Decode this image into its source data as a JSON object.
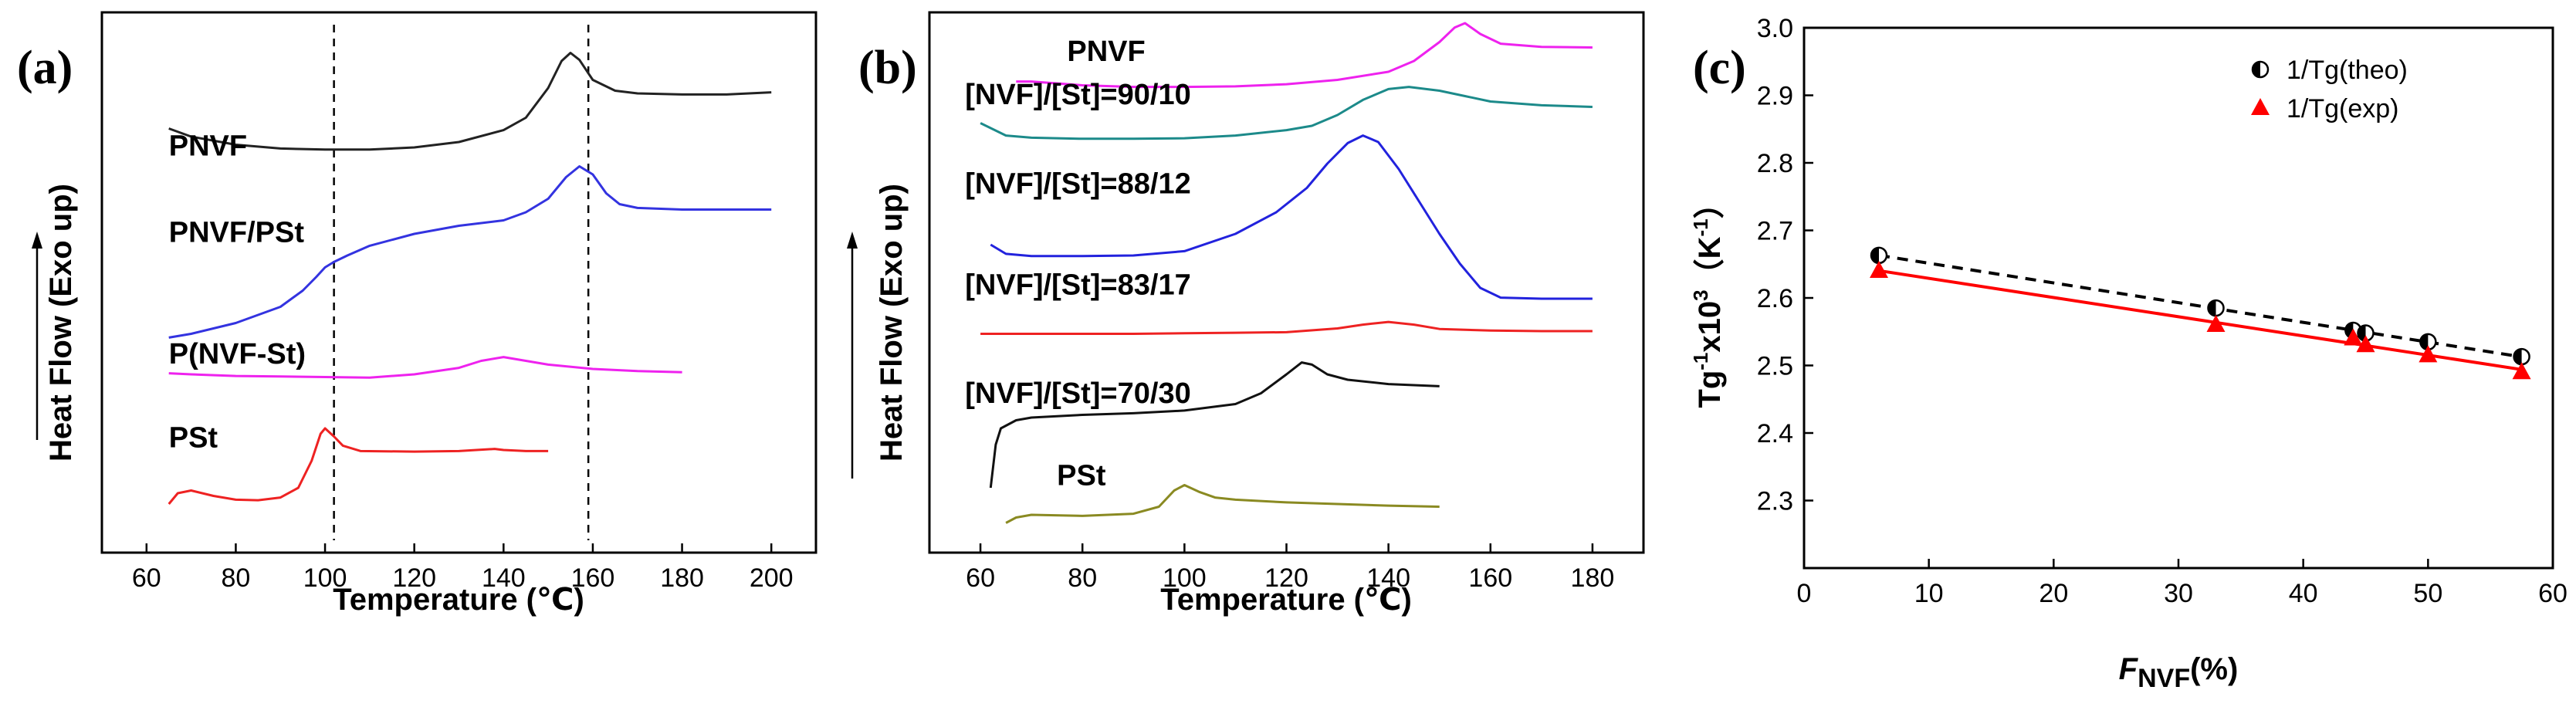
{
  "chart_data": [
    {
      "panel": "(a)",
      "type": "line",
      "xlabel": "Temperature (℃)",
      "ylabel": "Heat Flow (Exo up)",
      "xlim": [
        50,
        210
      ],
      "xticks": [
        60,
        80,
        100,
        120,
        140,
        160,
        180,
        200
      ],
      "ylim": [
        0,
        10
      ],
      "y_axis_scale": "arbitrary (offset curves, no tick labels)",
      "reference_lines": [
        102,
        159
      ],
      "series": [
        {
          "name": "PNVF",
          "label": "PNVF",
          "color": "#222222",
          "label_pos": [
            65,
            7.35
          ],
          "points": [
            [
              65,
              7.85
            ],
            [
              70,
              7.7
            ],
            [
              80,
              7.55
            ],
            [
              90,
              7.48
            ],
            [
              100,
              7.46
            ],
            [
              110,
              7.46
            ],
            [
              120,
              7.5
            ],
            [
              130,
              7.6
            ],
            [
              140,
              7.82
            ],
            [
              145,
              8.05
            ],
            [
              150,
              8.6
            ],
            [
              153,
              9.1
            ],
            [
              155,
              9.25
            ],
            [
              157,
              9.12
            ],
            [
              160,
              8.75
            ],
            [
              165,
              8.55
            ],
            [
              170,
              8.5
            ],
            [
              180,
              8.48
            ],
            [
              190,
              8.48
            ],
            [
              200,
              8.52
            ]
          ]
        },
        {
          "name": "PNVF/PSt",
          "label": "PNVF/PSt",
          "color": "#3333e0",
          "label_pos": [
            65,
            5.75
          ],
          "points": [
            [
              65,
              3.98
            ],
            [
              70,
              4.05
            ],
            [
              80,
              4.25
            ],
            [
              90,
              4.55
            ],
            [
              95,
              4.85
            ],
            [
              98,
              5.1
            ],
            [
              100,
              5.28
            ],
            [
              102,
              5.38
            ],
            [
              105,
              5.5
            ],
            [
              110,
              5.68
            ],
            [
              120,
              5.9
            ],
            [
              130,
              6.05
            ],
            [
              140,
              6.15
            ],
            [
              145,
              6.3
            ],
            [
              150,
              6.55
            ],
            [
              154,
              6.95
            ],
            [
              157,
              7.15
            ],
            [
              160,
              7.0
            ],
            [
              163,
              6.65
            ],
            [
              166,
              6.45
            ],
            [
              170,
              6.38
            ],
            [
              180,
              6.35
            ],
            [
              190,
              6.35
            ],
            [
              200,
              6.35
            ]
          ]
        },
        {
          "name": "P(NVF-St)",
          "label": "P(NVF-St)",
          "color": "#ee22ee",
          "label_pos": [
            65,
            3.5
          ],
          "points": [
            [
              65,
              3.32
            ],
            [
              70,
              3.3
            ],
            [
              80,
              3.27
            ],
            [
              90,
              3.26
            ],
            [
              100,
              3.25
            ],
            [
              110,
              3.24
            ],
            [
              120,
              3.3
            ],
            [
              130,
              3.42
            ],
            [
              135,
              3.55
            ],
            [
              140,
              3.62
            ],
            [
              145,
              3.55
            ],
            [
              150,
              3.48
            ],
            [
              160,
              3.4
            ],
            [
              170,
              3.36
            ],
            [
              180,
              3.34
            ]
          ]
        },
        {
          "name": "PSt",
          "label": "PSt",
          "color": "#ee2222",
          "label_pos": [
            65,
            1.95
          ],
          "points": [
            [
              65,
              0.9
            ],
            [
              67,
              1.1
            ],
            [
              70,
              1.15
            ],
            [
              75,
              1.05
            ],
            [
              80,
              0.98
            ],
            [
              85,
              0.97
            ],
            [
              90,
              1.02
            ],
            [
              94,
              1.2
            ],
            [
              97,
              1.7
            ],
            [
              99,
              2.2
            ],
            [
              100,
              2.3
            ],
            [
              102,
              2.15
            ],
            [
              104,
              1.98
            ],
            [
              108,
              1.88
            ],
            [
              120,
              1.87
            ],
            [
              130,
              1.88
            ],
            [
              138,
              1.92
            ],
            [
              140,
              1.9
            ],
            [
              145,
              1.88
            ],
            [
              150,
              1.88
            ]
          ]
        }
      ]
    },
    {
      "panel": "(b)",
      "type": "line",
      "xlabel": "Temperature (℃)",
      "ylabel": "Heat Flow (Exo up)",
      "xlim": [
        50,
        190
      ],
      "xticks": [
        60,
        80,
        100,
        120,
        140,
        160,
        180
      ],
      "ylim": [
        0,
        10
      ],
      "y_axis_scale": "arbitrary (offset curves, no tick labels)",
      "series": [
        {
          "name": "PNVF",
          "label": "PNVF",
          "color": "#ee22ee",
          "label_pos": [
            77,
            9.1
          ],
          "points": [
            [
              67,
              8.72
            ],
            [
              70,
              8.72
            ],
            [
              80,
              8.65
            ],
            [
              90,
              8.62
            ],
            [
              100,
              8.62
            ],
            [
              110,
              8.63
            ],
            [
              120,
              8.67
            ],
            [
              130,
              8.75
            ],
            [
              140,
              8.9
            ],
            [
              145,
              9.1
            ],
            [
              150,
              9.45
            ],
            [
              153,
              9.72
            ],
            [
              155,
              9.8
            ],
            [
              158,
              9.6
            ],
            [
              162,
              9.42
            ],
            [
              170,
              9.36
            ],
            [
              180,
              9.35
            ]
          ]
        },
        {
          "name": "[NVF]/[St]=90/10",
          "label": "[NVF]/[St]=90/10",
          "color": "#1c8a8a",
          "label_pos": [
            57,
            8.3
          ],
          "points": [
            [
              60,
              7.95
            ],
            [
              65,
              7.72
            ],
            [
              70,
              7.68
            ],
            [
              80,
              7.66
            ],
            [
              90,
              7.66
            ],
            [
              100,
              7.67
            ],
            [
              110,
              7.72
            ],
            [
              120,
              7.82
            ],
            [
              125,
              7.9
            ],
            [
              130,
              8.1
            ],
            [
              135,
              8.38
            ],
            [
              140,
              8.58
            ],
            [
              144,
              8.62
            ],
            [
              150,
              8.55
            ],
            [
              155,
              8.45
            ],
            [
              160,
              8.35
            ],
            [
              170,
              8.28
            ],
            [
              180,
              8.25
            ]
          ]
        },
        {
          "name": "[NVF]/[St]=88/12",
          "label": "[NVF]/[St]=88/12",
          "color": "#2222dd",
          "label_pos": [
            57,
            6.65
          ],
          "points": [
            [
              62,
              5.7
            ],
            [
              65,
              5.53
            ],
            [
              70,
              5.49
            ],
            [
              80,
              5.49
            ],
            [
              90,
              5.5
            ],
            [
              100,
              5.58
            ],
            [
              110,
              5.9
            ],
            [
              118,
              6.3
            ],
            [
              124,
              6.75
            ],
            [
              128,
              7.2
            ],
            [
              132,
              7.58
            ],
            [
              135,
              7.72
            ],
            [
              138,
              7.6
            ],
            [
              142,
              7.1
            ],
            [
              146,
              6.5
            ],
            [
              150,
              5.9
            ],
            [
              154,
              5.35
            ],
            [
              158,
              4.9
            ],
            [
              162,
              4.72
            ],
            [
              170,
              4.7
            ],
            [
              180,
              4.7
            ]
          ]
        },
        {
          "name": "[NVF]/[St]=83/17",
          "label": "[NVF]/[St]=83/17",
          "color": "#ee2222",
          "label_pos": [
            57,
            4.78
          ],
          "points": [
            [
              60,
              4.05
            ],
            [
              70,
              4.05
            ],
            [
              80,
              4.05
            ],
            [
              90,
              4.05
            ],
            [
              100,
              4.06
            ],
            [
              110,
              4.07
            ],
            [
              120,
              4.08
            ],
            [
              130,
              4.15
            ],
            [
              135,
              4.22
            ],
            [
              140,
              4.27
            ],
            [
              145,
              4.22
            ],
            [
              150,
              4.14
            ],
            [
              160,
              4.11
            ],
            [
              170,
              4.1
            ],
            [
              180,
              4.1
            ]
          ]
        },
        {
          "name": "[NVF]/[St]=70/30",
          "label": "[NVF]/[St]=70/30",
          "color": "#111111",
          "label_pos": [
            57,
            2.77
          ],
          "points": [
            [
              62,
              1.2
            ],
            [
              63,
              2.0
            ],
            [
              64,
              2.3
            ],
            [
              67,
              2.45
            ],
            [
              70,
              2.5
            ],
            [
              80,
              2.55
            ],
            [
              90,
              2.58
            ],
            [
              100,
              2.63
            ],
            [
              110,
              2.75
            ],
            [
              115,
              2.95
            ],
            [
              120,
              3.3
            ],
            [
              123,
              3.52
            ],
            [
              125,
              3.48
            ],
            [
              128,
              3.3
            ],
            [
              132,
              3.2
            ],
            [
              140,
              3.12
            ],
            [
              150,
              3.08
            ]
          ]
        },
        {
          "name": "PSt",
          "label": "PSt",
          "color": "#8a8a22",
          "label_pos": [
            75,
            1.25
          ],
          "points": [
            [
              65,
              0.55
            ],
            [
              67,
              0.65
            ],
            [
              70,
              0.7
            ],
            [
              80,
              0.68
            ],
            [
              90,
              0.72
            ],
            [
              95,
              0.85
            ],
            [
              98,
              1.15
            ],
            [
              100,
              1.25
            ],
            [
              103,
              1.12
            ],
            [
              106,
              1.02
            ],
            [
              110,
              0.98
            ],
            [
              120,
              0.93
            ],
            [
              130,
              0.9
            ],
            [
              140,
              0.87
            ],
            [
              150,
              0.85
            ]
          ]
        }
      ]
    },
    {
      "panel": "(c)",
      "type": "scatter",
      "xlabel": "F_NVF(%)",
      "ylabel": "Tg⁻¹x10³ (K⁻¹)",
      "xlim": [
        0,
        60
      ],
      "ylim": [
        2.2,
        3.0
      ],
      "xticks": [
        0,
        10,
        20,
        30,
        40,
        50,
        60
      ],
      "yticks": [
        2.3,
        2.4,
        2.5,
        2.6,
        2.7,
        2.8,
        2.9,
        3.0
      ],
      "legend_position": "top-right",
      "series": [
        {
          "name": "1/Tg(theo)",
          "marker": "half-filled circle",
          "color": "#000000",
          "fit_line": "dashed",
          "x": [
            6,
            33,
            44,
            45,
            50,
            57.5
          ],
          "y": [
            2.663,
            2.585,
            2.552,
            2.548,
            2.535,
            2.513
          ]
        },
        {
          "name": "1/Tg(exp)",
          "marker": "triangle",
          "color": "#ff0000",
          "fit_line": "solid",
          "x": [
            6,
            33,
            44,
            45,
            50,
            57.5
          ],
          "y": [
            2.64,
            2.56,
            2.54,
            2.53,
            2.515,
            2.49
          ]
        }
      ]
    }
  ],
  "figure_text": {
    "panel_a": "(a)",
    "panel_b": "(b)",
    "panel_c": "(c)",
    "xlabel_a": "Temperature (℃)",
    "xlabel_b": "Temperature (℃)",
    "ylabel_ab": "Heat Flow (Exo up)",
    "c_xlabel_sym": "F",
    "c_xlabel_sub": "NVF",
    "c_xlabel_unit": "(%)",
    "c_ylabel_main": "Tg",
    "c_ylabel_sup1": "-1",
    "c_ylabel_mid": "x10",
    "c_ylabel_sup2": "3",
    "c_ylabel_unit_open": "（K",
    "c_ylabel_sup3": "-1",
    "c_ylabel_unit_close": "）"
  }
}
